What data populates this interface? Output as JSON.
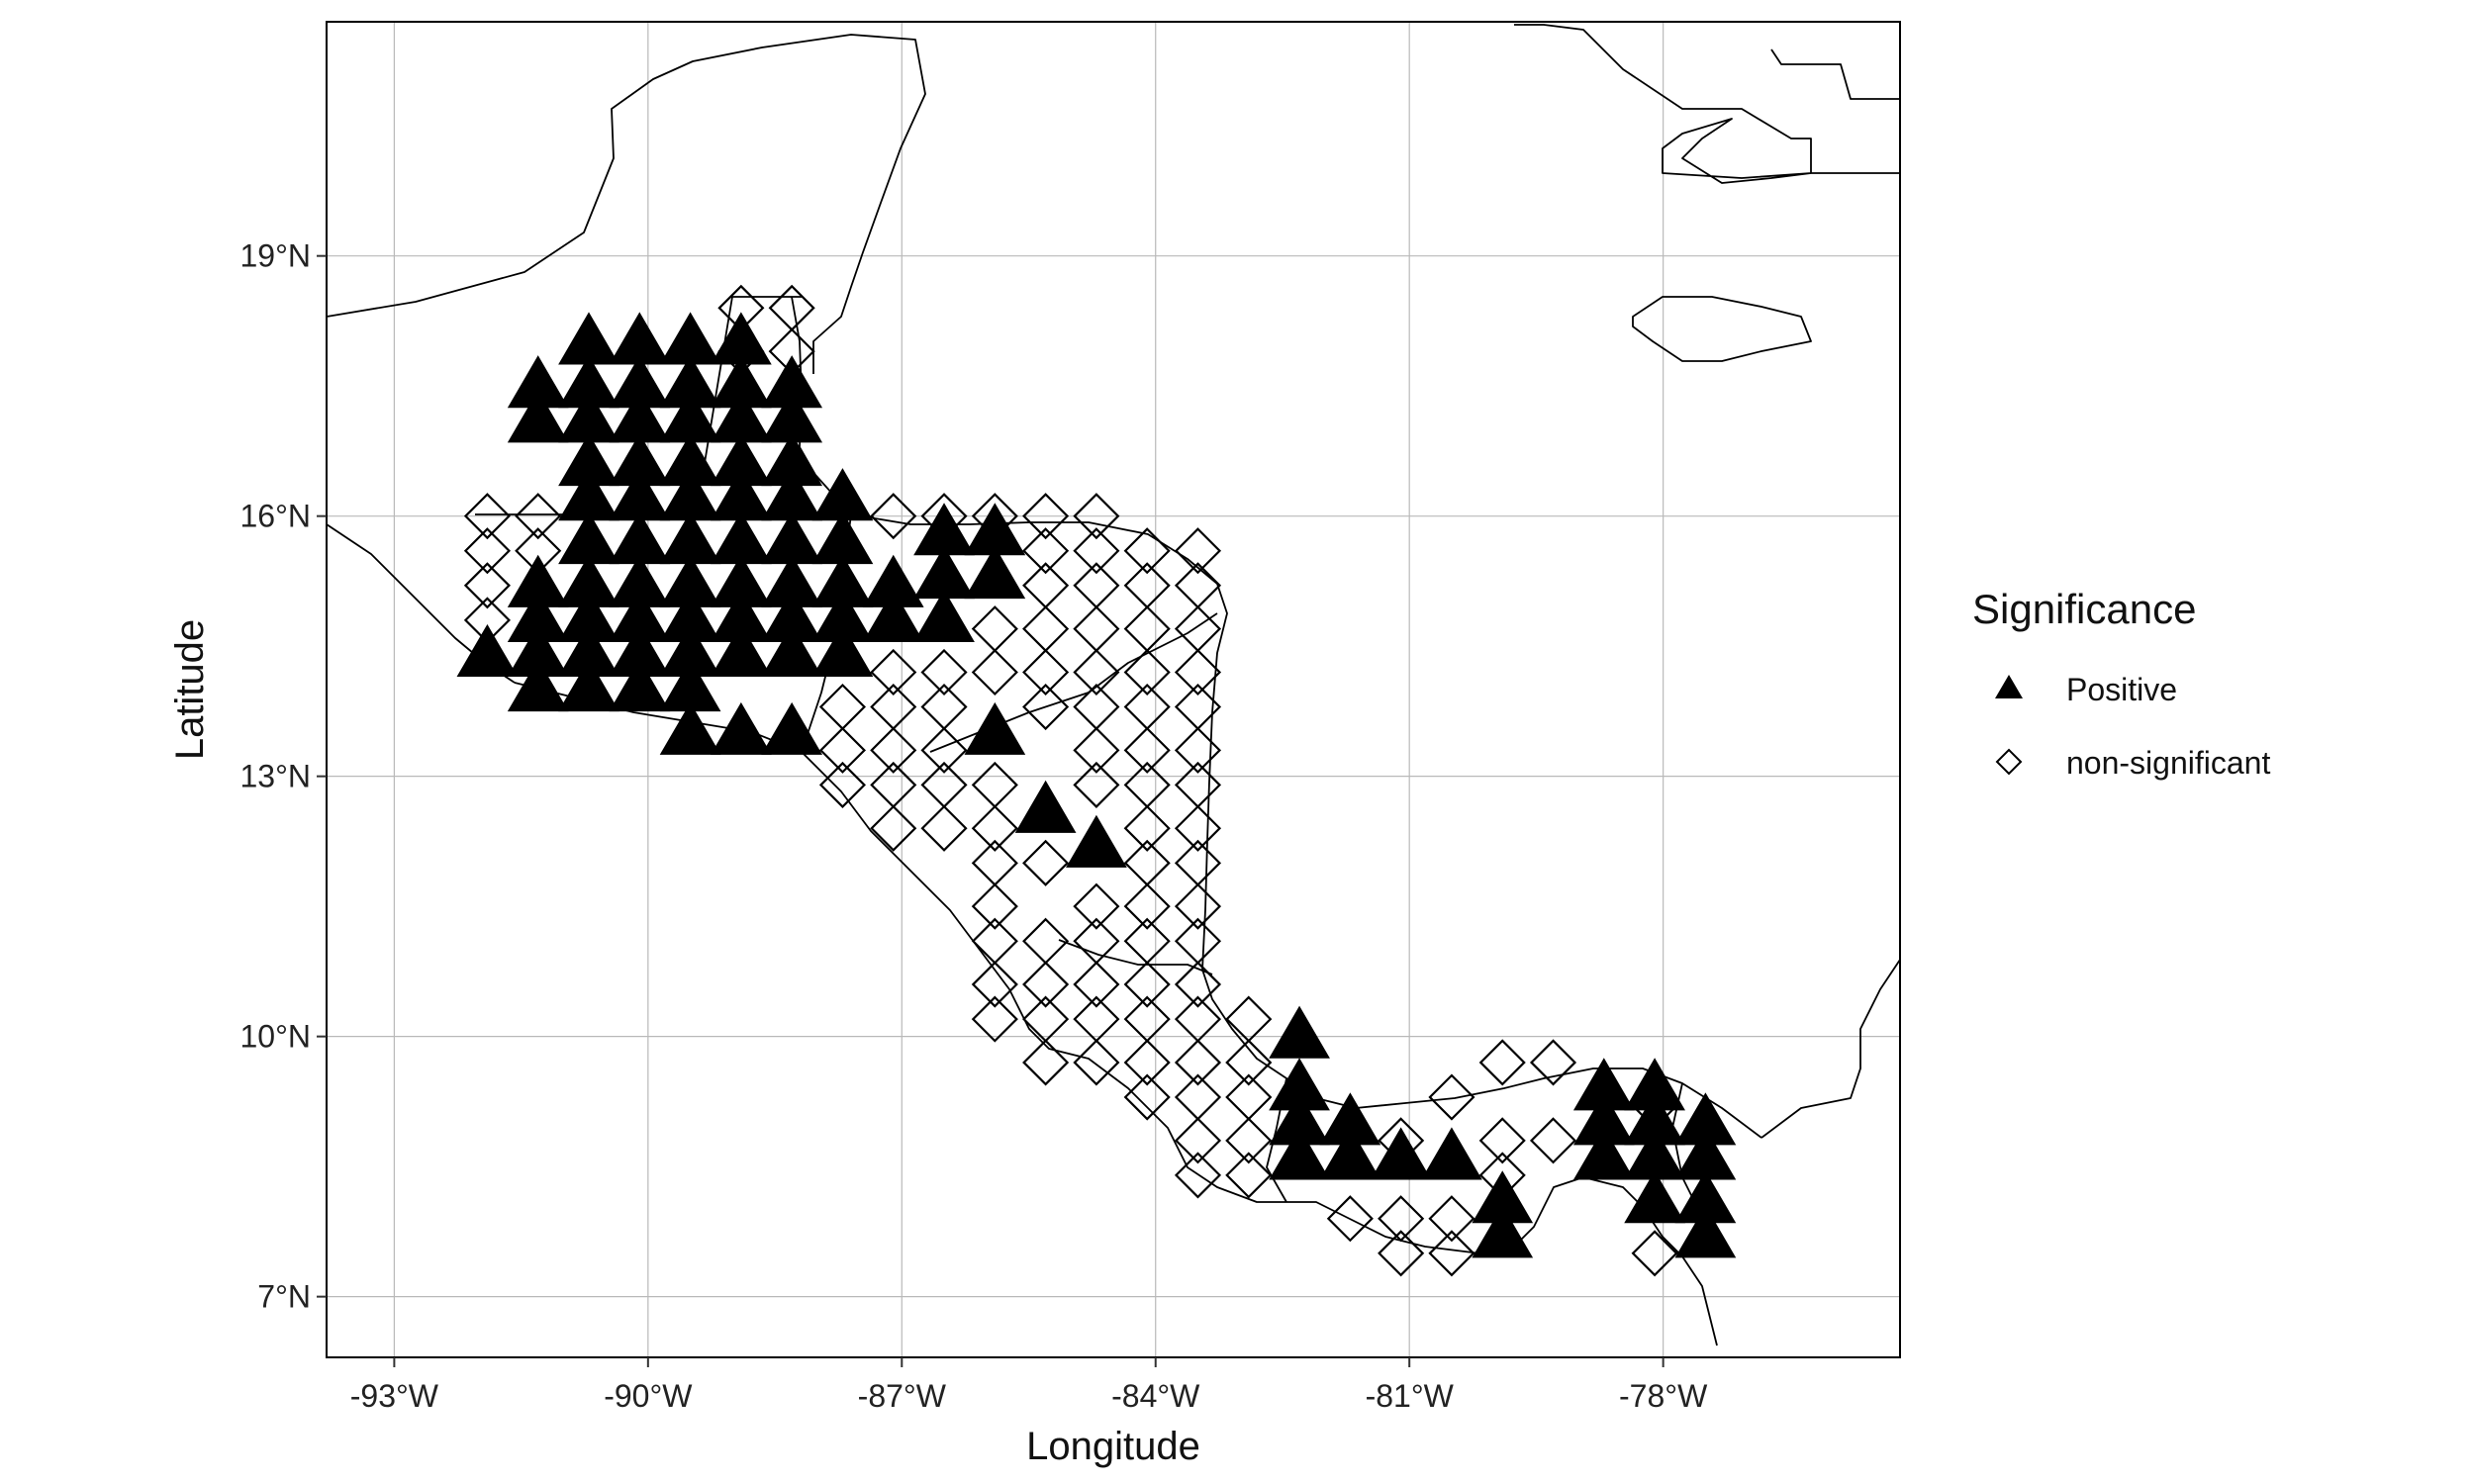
{
  "chart_data": {
    "type": "scatter",
    "xlabel": "Longitude",
    "ylabel": "Latitude",
    "xlim": [
      -93.8,
      -75.2
    ],
    "ylim": [
      6.3,
      21.7
    ],
    "x_ticks": [
      {
        "value": -93,
        "label": "-93°W"
      },
      {
        "value": -90,
        "label": "-90°W"
      },
      {
        "value": -87,
        "label": "-87°W"
      },
      {
        "value": -84,
        "label": "-84°W"
      },
      {
        "value": -81,
        "label": "-81°W"
      },
      {
        "value": -78,
        "label": "-78°W"
      }
    ],
    "y_ticks": [
      {
        "value": 7,
        "label": "7°N"
      },
      {
        "value": 10,
        "label": "10°N"
      },
      {
        "value": 13,
        "label": "13°N"
      },
      {
        "value": 16,
        "label": "16°N"
      },
      {
        "value": 19,
        "label": "19°N"
      }
    ],
    "grid": true,
    "legend": {
      "title": "Significance",
      "position": "right",
      "entries": [
        {
          "label": "Positive",
          "shape": "triangle-filled"
        },
        {
          "label": "non-significant",
          "shape": "diamond-open"
        }
      ]
    },
    "series": [
      {
        "name": "Positive",
        "shape": "triangle-filled",
        "color": "#000000",
        "points": [
          [
            -91.3,
            17.5
          ],
          [
            -91.3,
            17.1
          ],
          [
            -90.7,
            18.0
          ],
          [
            -90.1,
            18.0
          ],
          [
            -89.5,
            18.0
          ],
          [
            -88.9,
            18.0
          ],
          [
            -88.3,
            17.5
          ],
          [
            -90.7,
            17.5
          ],
          [
            -90.1,
            17.5
          ],
          [
            -89.5,
            17.5
          ],
          [
            -88.9,
            17.5
          ],
          [
            -90.7,
            17.1
          ],
          [
            -90.1,
            17.1
          ],
          [
            -89.5,
            17.1
          ],
          [
            -88.9,
            17.1
          ],
          [
            -88.3,
            17.1
          ],
          [
            -90.7,
            16.6
          ],
          [
            -90.1,
            16.6
          ],
          [
            -89.5,
            16.6
          ],
          [
            -88.9,
            16.6
          ],
          [
            -88.3,
            16.6
          ],
          [
            -90.7,
            16.2
          ],
          [
            -90.1,
            16.2
          ],
          [
            -89.5,
            16.2
          ],
          [
            -88.9,
            16.2
          ],
          [
            -88.3,
            16.2
          ],
          [
            -87.7,
            16.2
          ],
          [
            -90.7,
            15.7
          ],
          [
            -90.1,
            15.7
          ],
          [
            -89.5,
            15.7
          ],
          [
            -88.9,
            15.7
          ],
          [
            -88.3,
            15.7
          ],
          [
            -87.7,
            15.7
          ],
          [
            -91.3,
            15.2
          ],
          [
            -90.7,
            15.2
          ],
          [
            -90.1,
            15.2
          ],
          [
            -89.5,
            15.2
          ],
          [
            -88.9,
            15.2
          ],
          [
            -88.3,
            15.2
          ],
          [
            -87.7,
            15.2
          ],
          [
            -87.1,
            15.2
          ],
          [
            -91.3,
            14.8
          ],
          [
            -90.7,
            14.8
          ],
          [
            -90.1,
            14.8
          ],
          [
            -89.5,
            14.8
          ],
          [
            -88.9,
            14.8
          ],
          [
            -88.3,
            14.8
          ],
          [
            -87.7,
            14.8
          ],
          [
            -87.1,
            14.8
          ],
          [
            -91.9,
            14.4
          ],
          [
            -91.3,
            14.4
          ],
          [
            -90.7,
            14.4
          ],
          [
            -90.1,
            14.4
          ],
          [
            -89.5,
            14.4
          ],
          [
            -88.9,
            14.4
          ],
          [
            -88.3,
            14.4
          ],
          [
            -87.7,
            14.4
          ],
          [
            -91.3,
            14.0
          ],
          [
            -90.7,
            14.0
          ],
          [
            -90.1,
            14.0
          ],
          [
            -89.5,
            14.0
          ],
          [
            -89.5,
            13.5
          ],
          [
            -88.9,
            13.5
          ],
          [
            -88.3,
            13.5
          ],
          [
            -86.5,
            15.8
          ],
          [
            -85.9,
            15.8
          ],
          [
            -86.5,
            15.3
          ],
          [
            -85.9,
            15.3
          ],
          [
            -86.5,
            14.8
          ],
          [
            -85.9,
            13.5
          ],
          [
            -85.3,
            12.6
          ],
          [
            -84.7,
            12.2
          ],
          [
            -82.3,
            10.0
          ],
          [
            -82.3,
            9.4
          ],
          [
            -82.3,
            9.0
          ],
          [
            -81.7,
            9.0
          ],
          [
            -82.3,
            8.6
          ],
          [
            -81.7,
            8.6
          ],
          [
            -81.1,
            8.6
          ],
          [
            -80.5,
            8.6
          ],
          [
            -79.9,
            8.1
          ],
          [
            -79.9,
            7.7
          ],
          [
            -78.7,
            9.4
          ],
          [
            -78.1,
            9.4
          ],
          [
            -78.7,
            9.0
          ],
          [
            -78.1,
            9.0
          ],
          [
            -77.5,
            9.0
          ],
          [
            -78.7,
            8.6
          ],
          [
            -78.1,
            8.6
          ],
          [
            -77.5,
            8.6
          ],
          [
            -78.1,
            8.1
          ],
          [
            -77.5,
            8.1
          ],
          [
            -77.5,
            7.7
          ]
        ]
      },
      {
        "name": "non-significant",
        "shape": "diamond-open",
        "color": "#000000",
        "points": [
          [
            -88.9,
            18.4
          ],
          [
            -88.3,
            18.4
          ],
          [
            -88.9,
            17.9
          ],
          [
            -88.3,
            17.9
          ],
          [
            -91.9,
            16.0
          ],
          [
            -91.3,
            16.0
          ],
          [
            -91.9,
            15.6
          ],
          [
            -91.3,
            15.6
          ],
          [
            -91.9,
            15.2
          ],
          [
            -91.9,
            14.8
          ],
          [
            -87.1,
            16.0
          ],
          [
            -86.5,
            16.0
          ],
          [
            -85.9,
            16.0
          ],
          [
            -85.3,
            16.0
          ],
          [
            -84.7,
            16.0
          ],
          [
            -85.3,
            15.6
          ],
          [
            -84.7,
            15.6
          ],
          [
            -84.1,
            15.6
          ],
          [
            -83.5,
            15.6
          ],
          [
            -85.3,
            15.2
          ],
          [
            -84.7,
            15.2
          ],
          [
            -84.1,
            15.2
          ],
          [
            -83.5,
            15.2
          ],
          [
            -85.9,
            14.7
          ],
          [
            -85.3,
            14.7
          ],
          [
            -84.7,
            14.7
          ],
          [
            -84.1,
            14.7
          ],
          [
            -83.5,
            14.7
          ],
          [
            -87.1,
            14.2
          ],
          [
            -86.5,
            14.2
          ],
          [
            -85.9,
            14.2
          ],
          [
            -85.3,
            14.2
          ],
          [
            -84.7,
            14.2
          ],
          [
            -84.1,
            14.2
          ],
          [
            -83.5,
            14.2
          ],
          [
            -87.7,
            13.8
          ],
          [
            -87.1,
            13.8
          ],
          [
            -86.5,
            13.8
          ],
          [
            -85.3,
            13.8
          ],
          [
            -84.7,
            13.8
          ],
          [
            -84.1,
            13.8
          ],
          [
            -83.5,
            13.8
          ],
          [
            -87.7,
            13.3
          ],
          [
            -87.1,
            13.3
          ],
          [
            -86.5,
            13.3
          ],
          [
            -84.7,
            13.3
          ],
          [
            -84.1,
            13.3
          ],
          [
            -83.5,
            13.3
          ],
          [
            -87.7,
            12.9
          ],
          [
            -87.1,
            12.9
          ],
          [
            -86.5,
            12.9
          ],
          [
            -85.9,
            12.9
          ],
          [
            -84.7,
            12.9
          ],
          [
            -84.1,
            12.9
          ],
          [
            -83.5,
            12.9
          ],
          [
            -87.1,
            12.4
          ],
          [
            -86.5,
            12.4
          ],
          [
            -85.9,
            12.4
          ],
          [
            -84.1,
            12.4
          ],
          [
            -83.5,
            12.4
          ],
          [
            -85.9,
            12.0
          ],
          [
            -85.3,
            12.0
          ],
          [
            -84.1,
            12.0
          ],
          [
            -83.5,
            12.0
          ],
          [
            -85.9,
            11.5
          ],
          [
            -84.7,
            11.5
          ],
          [
            -84.1,
            11.5
          ],
          [
            -83.5,
            11.5
          ],
          [
            -85.9,
            11.1
          ],
          [
            -85.3,
            11.1
          ],
          [
            -84.7,
            11.1
          ],
          [
            -84.1,
            11.1
          ],
          [
            -83.5,
            11.1
          ],
          [
            -85.9,
            10.6
          ],
          [
            -85.3,
            10.6
          ],
          [
            -84.7,
            10.6
          ],
          [
            -84.1,
            10.6
          ],
          [
            -83.5,
            10.6
          ],
          [
            -85.9,
            10.2
          ],
          [
            -85.3,
            10.2
          ],
          [
            -84.7,
            10.2
          ],
          [
            -84.1,
            10.2
          ],
          [
            -83.5,
            10.2
          ],
          [
            -82.9,
            10.2
          ],
          [
            -85.3,
            9.7
          ],
          [
            -84.7,
            9.7
          ],
          [
            -84.1,
            9.7
          ],
          [
            -83.5,
            9.7
          ],
          [
            -82.9,
            9.7
          ],
          [
            -84.1,
            9.3
          ],
          [
            -83.5,
            9.3
          ],
          [
            -82.9,
            9.3
          ],
          [
            -80.5,
            9.3
          ],
          [
            -83.5,
            8.8
          ],
          [
            -82.9,
            8.8
          ],
          [
            -81.1,
            8.8
          ],
          [
            -79.9,
            8.8
          ],
          [
            -79.3,
            8.8
          ],
          [
            -83.5,
            8.4
          ],
          [
            -82.9,
            8.4
          ],
          [
            -79.9,
            8.4
          ],
          [
            -81.7,
            7.9
          ],
          [
            -81.1,
            7.9
          ],
          [
            -80.5,
            7.9
          ],
          [
            -81.1,
            7.5
          ],
          [
            -80.5,
            7.5
          ],
          [
            -78.1,
            7.5
          ],
          [
            -79.9,
            9.7
          ],
          [
            -79.3,
            9.7
          ],
          [
            -78.1,
            9.2
          ]
        ]
      }
    ]
  }
}
